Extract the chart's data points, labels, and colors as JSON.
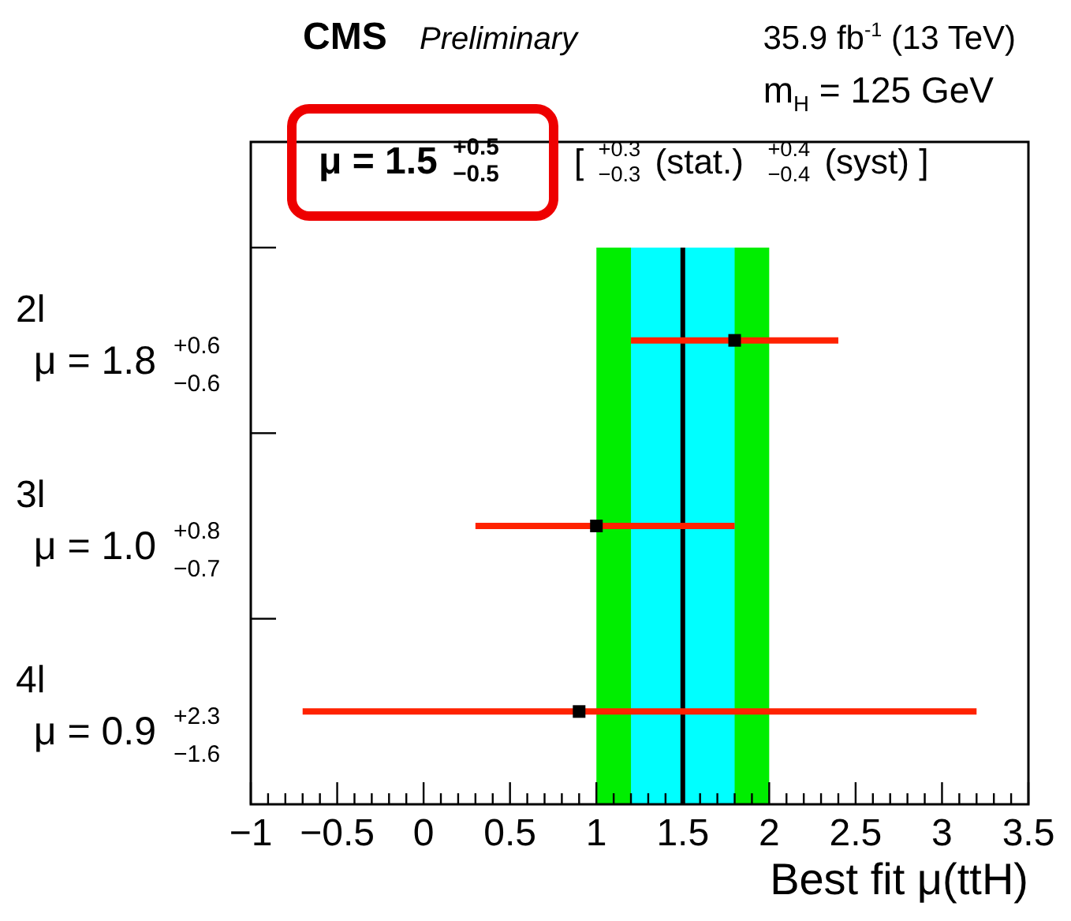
{
  "chart_data": {
    "type": "scatter",
    "orientation": "horizontal",
    "title": "CMS",
    "subtitle": "Preliminary",
    "xlabel": "Best fit μ(ttH)",
    "annotations": [
      "35.9 fb$^{-1}$ (13 TeV)",
      "m$_{H}$ = 125 GeV",
      "μ = 1.5 $^{+0.5}$$_{−0.5}$",
      "[ $^{+0.3}$$_{−0.3}$ (stat.)  $^{+0.4}$$_{−0.4}$ (syst) ]"
    ],
    "categories": [
      "2l",
      "3l",
      "4l"
    ],
    "values": [
      1.8,
      1.0,
      0.9
    ],
    "errors": [
      [
        1.2,
        2.4
      ],
      [
        0.3,
        1.8
      ],
      [
        -0.7,
        3.2
      ]
    ],
    "value_labels": [
      "μ = 1.8 $^{+0.6}$$_{−0.6}$",
      "μ = 1.0 $^{+0.8}$$_{−0.7}$",
      "μ = 0.9 $^{+2.3}$$_{−1.6}$"
    ],
    "color": "#000000",
    "marker": "square",
    "xlim": [
      -1,
      3.5
    ],
    "xticks": [
      {
        "value": -1,
        "label": "−1"
      },
      {
        "value": -0.9,
        "label": null
      },
      {
        "value": -0.8,
        "label": null
      },
      {
        "value": -0.7,
        "label": null
      },
      {
        "value": -0.6,
        "label": null
      },
      {
        "value": -0.5,
        "label": "−0.5"
      },
      {
        "value": -0.4,
        "label": null
      },
      {
        "value": -0.3,
        "label": null
      },
      {
        "value": -0.2,
        "label": null
      },
      {
        "value": -0.1,
        "label": null
      },
      0,
      {
        "value": 0.1,
        "label": null
      },
      {
        "value": 0.2,
        "label": null
      },
      {
        "value": 0.3,
        "label": null
      },
      {
        "value": 0.4,
        "label": null
      },
      0.5,
      {
        "value": 0.6,
        "label": null
      },
      {
        "value": 0.7,
        "label": null
      },
      {
        "value": 0.8,
        "label": null
      },
      {
        "value": 0.9,
        "label": null
      },
      1,
      {
        "value": 1.1,
        "label": null
      },
      {
        "value": 1.2,
        "label": null
      },
      {
        "value": 1.3,
        "label": null
      },
      {
        "value": 1.4,
        "label": null
      },
      1.5,
      {
        "value": 1.6,
        "label": null
      },
      {
        "value": 1.7,
        "label": null
      },
      {
        "value": 1.8,
        "label": null
      },
      {
        "value": 1.9,
        "label": null
      },
      2,
      {
        "value": 2.1,
        "label": null
      },
      {
        "value": 2.2,
        "label": null
      },
      {
        "value": 2.3,
        "label": null
      },
      {
        "value": 2.4,
        "label": null
      },
      2.5,
      {
        "value": 2.6,
        "label": null
      },
      {
        "value": 2.7,
        "label": null
      },
      {
        "value": 2.8,
        "label": null
      },
      {
        "value": 2.9,
        "label": null
      },
      3,
      {
        "value": 3.1,
        "label": null
      },
      {
        "value": 3.2,
        "label": null
      },
      {
        "value": 3.3,
        "label": null
      },
      {
        "value": 3.4,
        "label": null
      },
      3.5
    ],
    "bands": [
      {
        "axis": "x",
        "from": 1.0,
        "to": 2.0,
        "color": "#00ee00"
      },
      {
        "axis": "x",
        "from": 1.2,
        "to": 1.8,
        "color": "#00ffff"
      }
    ],
    "ref_lines": [
      {
        "axis": "x",
        "value": 1.5,
        "color": "#000000"
      }
    ]
  }
}
